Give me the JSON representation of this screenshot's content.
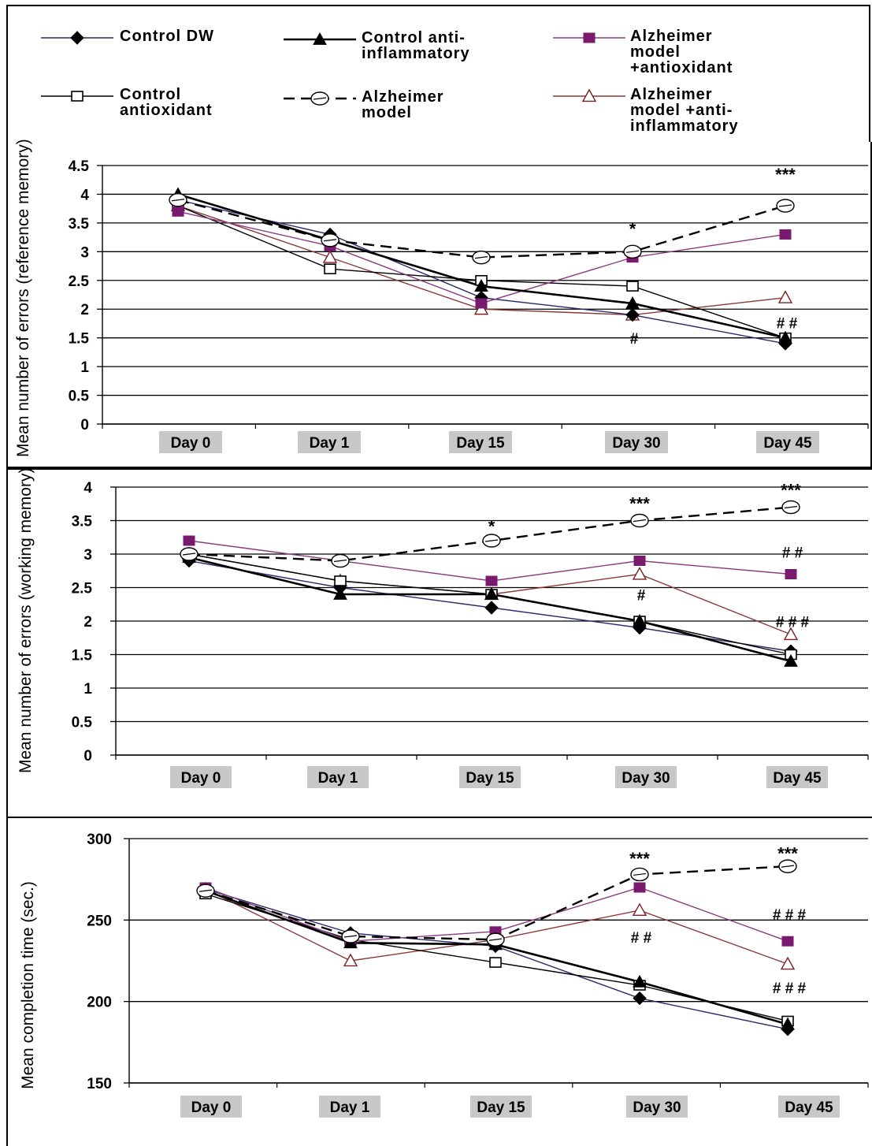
{
  "legend": {
    "entries": [
      {
        "key": "control_dw",
        "lines": [
          "Control DW"
        ]
      },
      {
        "key": "control_antiinflammatory",
        "lines": [
          "Control anti-",
          "inflammatory"
        ]
      },
      {
        "key": "alz_antioxidant",
        "lines": [
          "Alzheimer",
          "model",
          "+antioxidant"
        ]
      },
      {
        "key": "control_antioxidant",
        "lines": [
          "Control",
          "antioxidant"
        ]
      },
      {
        "key": "alz_model",
        "lines": [
          "Alzheimer",
          "model"
        ]
      },
      {
        "key": "alz_antiinflammatory",
        "lines": [
          "Alzheimer",
          "model +anti-",
          "inflammatory"
        ]
      }
    ]
  },
  "series_styles": {
    "control_dw": {
      "marker": "diamond-filled",
      "line": "solid",
      "color": "#000000",
      "line_color": "#2a2a6a"
    },
    "control_antiinflammatory": {
      "marker": "triangle-filled",
      "line": "solid-thick",
      "color": "#000000",
      "line_color": "#000000"
    },
    "alz_antioxidant": {
      "marker": "square-filled",
      "line": "solid",
      "color": "#7a1a6e",
      "line_color": "#8a3a80"
    },
    "control_antioxidant": {
      "marker": "square-open",
      "line": "solid",
      "color": "#000000",
      "line_color": "#000000"
    },
    "alz_model": {
      "marker": "circle-open",
      "line": "dashed",
      "color": "#000000",
      "line_color": "#000000"
    },
    "alz_antiinflammatory": {
      "marker": "triangle-open",
      "line": "solid",
      "color": "#7a2020",
      "line_color": "#8b3a3a"
    }
  },
  "chart_data": [
    {
      "type": "line",
      "ylabel": "Mean number of errors (reference memory)",
      "categories": [
        "Day 0",
        "Day 1",
        "Day 15",
        "Day 30",
        "Day 45"
      ],
      "ylim": [
        0,
        4.5
      ],
      "yticks": [
        "0",
        "0.5",
        "1",
        "1.5",
        "2",
        "2.5",
        "3",
        "3.5",
        "4",
        "4.5"
      ],
      "grid": true,
      "series": [
        {
          "key": "control_dw",
          "values": [
            3.9,
            3.3,
            2.2,
            1.9,
            1.4
          ]
        },
        {
          "key": "control_antiinflammatory",
          "values": [
            4.0,
            3.2,
            2.4,
            2.1,
            1.5
          ]
        },
        {
          "key": "alz_antioxidant",
          "values": [
            3.7,
            3.1,
            2.1,
            2.9,
            3.3
          ]
        },
        {
          "key": "control_antioxidant",
          "values": [
            3.8,
            2.7,
            2.5,
            2.4,
            1.5
          ]
        },
        {
          "key": "alz_model",
          "values": [
            3.9,
            3.2,
            2.9,
            3.0,
            3.8
          ]
        },
        {
          "key": "alz_antiinflammatory",
          "values": [
            3.8,
            2.9,
            2.0,
            1.9,
            2.2
          ]
        }
      ],
      "annotations": [
        {
          "text": "*",
          "category": "Day 30",
          "y": 3.4
        },
        {
          "text": "***",
          "category": "Day 45",
          "y": 4.35
        },
        {
          "text": "#",
          "category": "Day 30",
          "y": 1.48
        },
        {
          "text": "# #",
          "category": "Day 45",
          "y": 1.75
        }
      ]
    },
    {
      "type": "line",
      "ylabel": "Mean number of errors  (working memory)",
      "categories": [
        "Day 0",
        "Day 1",
        "Day 15",
        "Day 30",
        "Day 45"
      ],
      "ylim": [
        0,
        4
      ],
      "yticks": [
        "0",
        "0.5",
        "1",
        "1.5",
        "2",
        "2.5",
        "3",
        "3.5",
        "4"
      ],
      "grid": true,
      "series": [
        {
          "key": "control_dw",
          "values": [
            2.9,
            2.5,
            2.2,
            1.9,
            1.55
          ]
        },
        {
          "key": "control_antiinflammatory",
          "values": [
            2.95,
            2.4,
            2.4,
            2.0,
            1.4
          ]
        },
        {
          "key": "alz_antioxidant",
          "values": [
            3.2,
            2.9,
            2.6,
            2.9,
            2.7
          ]
        },
        {
          "key": "control_antioxidant",
          "values": [
            3.0,
            2.6,
            2.4,
            2.0,
            1.5
          ]
        },
        {
          "key": "alz_model",
          "values": [
            3.0,
            2.9,
            3.2,
            3.5,
            3.7
          ]
        },
        {
          "key": "alz_antiinflammatory",
          "values": [
            3.0,
            2.6,
            2.4,
            2.7,
            1.8
          ]
        }
      ],
      "annotations": [
        {
          "text": "*",
          "category": "Day 15",
          "y": 3.42
        },
        {
          "text": "***",
          "category": "Day 30",
          "y": 3.76
        },
        {
          "text": "***",
          "category": "Day 45",
          "y": 3.96
        },
        {
          "text": "# #",
          "category": "Day 45",
          "y": 3.02
        },
        {
          "text": "#",
          "category": "Day 30",
          "y": 2.38
        },
        {
          "text": "# # #",
          "category": "Day 45",
          "y": 1.98
        }
      ]
    },
    {
      "type": "line",
      "ylabel": "Mean completion time (sec.)",
      "categories": [
        "Day 0",
        "Day 1",
        "Day 15",
        "Day 30",
        "Day 45"
      ],
      "ylim": [
        150,
        300
      ],
      "yticks": [
        "150",
        "200",
        "250",
        "300"
      ],
      "grid": true,
      "series": [
        {
          "key": "control_dw",
          "values": [
            269,
            242,
            234,
            202,
            183
          ]
        },
        {
          "key": "control_antiinflammatory",
          "values": [
            268,
            236,
            235,
            212,
            186
          ]
        },
        {
          "key": "alz_antioxidant",
          "values": [
            270,
            237,
            243,
            270,
            237
          ]
        },
        {
          "key": "control_antioxidant",
          "values": [
            266,
            238,
            224,
            210,
            188
          ]
        },
        {
          "key": "alz_model",
          "values": [
            268,
            240,
            238,
            278,
            283
          ]
        },
        {
          "key": "alz_antiinflammatory",
          "values": [
            269,
            225,
            238,
            256,
            223
          ]
        }
      ],
      "annotations": [
        {
          "text": "***",
          "category": "Day 30",
          "y": 288
        },
        {
          "text": "***",
          "category": "Day 45",
          "y": 291
        },
        {
          "text": "# # #",
          "category": "Day 45",
          "y": 253
        },
        {
          "text": "# #",
          "category": "Day 30",
          "y": 239
        },
        {
          "text": "# # #",
          "category": "Day 45",
          "y": 208
        }
      ]
    }
  ]
}
